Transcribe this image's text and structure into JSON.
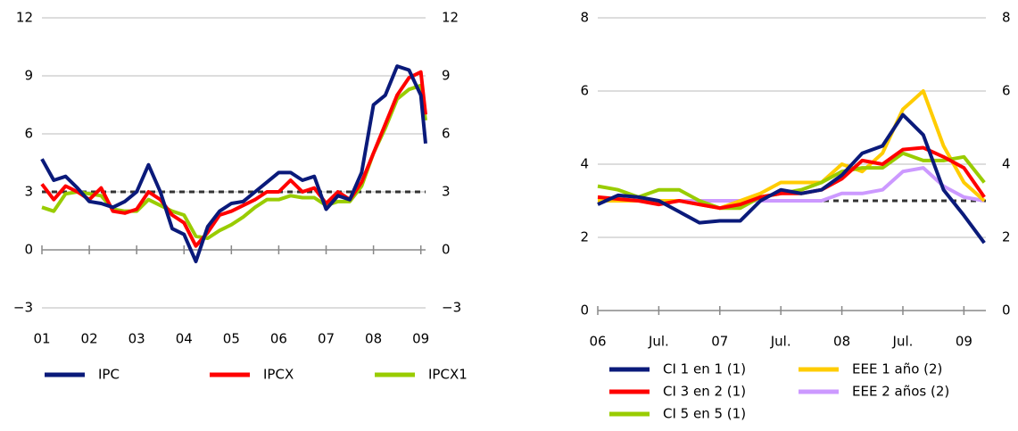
{
  "chart_data": [
    {
      "type": "line",
      "x": [
        2001,
        2001.25,
        2001.5,
        2001.75,
        2002,
        2002.25,
        2002.5,
        2002.75,
        2003,
        2003.25,
        2003.5,
        2003.75,
        2004,
        2004.25,
        2004.5,
        2004.75,
        2005,
        2005.25,
        2005.5,
        2005.75,
        2006,
        2006.25,
        2006.5,
        2006.75,
        2007,
        2007.25,
        2007.5,
        2007.75,
        2008,
        2008.25,
        2008.5,
        2008.75,
        2009,
        2009.1
      ],
      "xlim": [
        2001,
        2009.1
      ],
      "xticks": [
        {
          "value": 2001,
          "label": "01"
        },
        {
          "value": 2002,
          "label": "02"
        },
        {
          "value": 2003,
          "label": "03"
        },
        {
          "value": 2004,
          "label": "04"
        },
        {
          "value": 2005,
          "label": "05"
        },
        {
          "value": 2006,
          "label": "06"
        },
        {
          "value": 2007,
          "label": "07"
        },
        {
          "value": 2008,
          "label": "08"
        },
        {
          "value": 2009,
          "label": "09"
        }
      ],
      "ylim": [
        -3,
        12
      ],
      "yticks": [
        {
          "value": -3,
          "label": "−3"
        },
        0,
        3,
        6,
        9,
        12
      ],
      "reference_line": 3,
      "series": [
        {
          "name": "IPC",
          "color": "#0a1a7a",
          "values": [
            4.7,
            3.6,
            3.8,
            3.2,
            2.5,
            2.4,
            2.2,
            2.5,
            3.0,
            4.4,
            3.0,
            1.1,
            0.8,
            -0.6,
            1.2,
            2.0,
            2.4,
            2.5,
            3.0,
            3.5,
            4.0,
            4.0,
            3.6,
            3.8,
            2.1,
            2.8,
            2.6,
            4.0,
            7.5,
            8.0,
            9.5,
            9.3,
            8.0,
            5.5
          ]
        },
        {
          "name": "IPCX",
          "color": "#ff0000",
          "values": [
            3.4,
            2.6,
            3.3,
            3.0,
            2.6,
            3.2,
            2.0,
            1.9,
            2.1,
            3.0,
            2.6,
            1.8,
            1.4,
            0.2,
            0.9,
            1.8,
            2.0,
            2.3,
            2.6,
            3.0,
            3.0,
            3.6,
            3.0,
            3.2,
            2.4,
            3.0,
            2.6,
            3.5,
            5.0,
            6.5,
            8.0,
            8.9,
            9.2,
            7.0
          ]
        },
        {
          "name": "IPCX1",
          "color": "#99cc00",
          "values": [
            2.2,
            2.0,
            2.9,
            3.0,
            2.9,
            2.8,
            2.1,
            2.0,
            2.0,
            2.6,
            2.3,
            2.0,
            1.8,
            0.7,
            0.6,
            1.0,
            1.3,
            1.7,
            2.2,
            2.6,
            2.6,
            2.8,
            2.7,
            2.7,
            2.3,
            2.5,
            2.5,
            3.3,
            5.0,
            6.3,
            7.8,
            8.3,
            8.5,
            6.7
          ]
        }
      ]
    },
    {
      "type": "line",
      "x": [
        2006,
        2006.167,
        2006.333,
        2006.5,
        2006.667,
        2006.833,
        2007,
        2007.167,
        2007.333,
        2007.5,
        2007.667,
        2007.833,
        2008,
        2008.167,
        2008.333,
        2008.5,
        2008.667,
        2008.833,
        2009,
        2009.167
      ],
      "xlim": [
        2006,
        2009.18
      ],
      "xticks": [
        {
          "value": 2006,
          "label": "06"
        },
        {
          "value": 2006.5,
          "label": "Jul."
        },
        {
          "value": 2007,
          "label": "07"
        },
        {
          "value": 2007.5,
          "label": "Jul."
        },
        {
          "value": 2008,
          "label": "08"
        },
        {
          "value": 2008.5,
          "label": "Jul."
        },
        {
          "value": 2009,
          "label": "09"
        }
      ],
      "ylim": [
        0,
        8
      ],
      "yticks": [
        0,
        2,
        4,
        6,
        8
      ],
      "reference_line": 3,
      "series": [
        {
          "name": "CI 1 en 1 (1)",
          "color": "#0a1a7a",
          "values": [
            2.9,
            3.15,
            3.1,
            3.0,
            2.7,
            2.4,
            2.45,
            2.45,
            3.0,
            3.3,
            3.2,
            3.3,
            3.7,
            4.3,
            4.5,
            5.35,
            4.8,
            3.3,
            2.6,
            1.85
          ]
        },
        {
          "name": "CI 3 en 2 (1)",
          "color": "#ff0000",
          "values": [
            3.1,
            3.05,
            3.0,
            2.9,
            3.0,
            2.9,
            2.8,
            2.9,
            3.1,
            3.2,
            3.2,
            3.3,
            3.6,
            4.1,
            4.0,
            4.4,
            4.45,
            4.2,
            3.9,
            3.1
          ]
        },
        {
          "name": "CI 5 en 5 (1)",
          "color": "#99cc00",
          "values": [
            3.4,
            3.3,
            3.1,
            3.3,
            3.3,
            3.0,
            2.8,
            2.8,
            3.1,
            3.2,
            3.3,
            3.5,
            3.8,
            3.9,
            3.9,
            4.3,
            4.1,
            4.1,
            4.2,
            3.5
          ]
        },
        {
          "name": "EEE 1 año (2)",
          "color": "#ffcc00",
          "values": [
            3.0,
            3.0,
            3.0,
            3.0,
            3.0,
            2.9,
            2.8,
            3.0,
            3.2,
            3.5,
            3.5,
            3.5,
            4.0,
            3.8,
            4.3,
            5.5,
            6.0,
            4.5,
            3.5,
            3.0
          ]
        },
        {
          "name": "EEE 2 años (2)",
          "color": "#cc99ff",
          "values": [
            3.0,
            3.0,
            3.0,
            3.0,
            3.0,
            3.0,
            3.0,
            3.0,
            3.0,
            3.0,
            3.0,
            3.0,
            3.2,
            3.2,
            3.3,
            3.8,
            3.9,
            3.4,
            3.1,
            3.0
          ]
        }
      ]
    }
  ]
}
